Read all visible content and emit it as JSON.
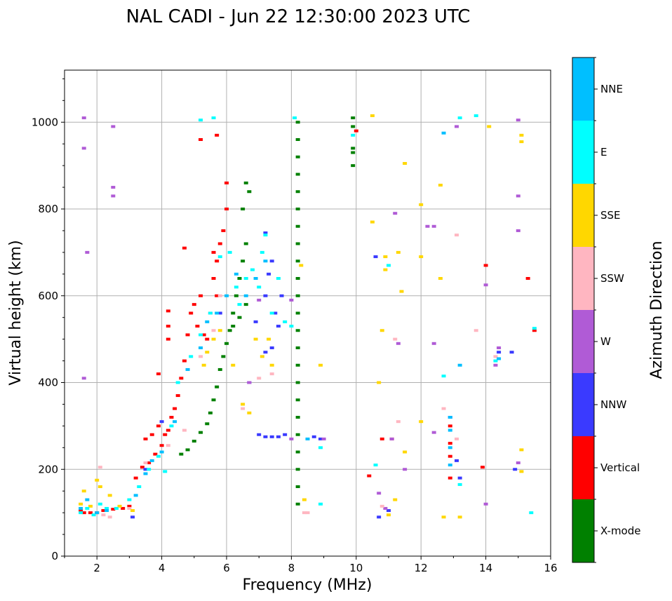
{
  "chart_data": {
    "type": "scatter",
    "title": "NAL CADI - Jun 22 12:30:00 2023 UTC",
    "xlabel": "Frequency (MHz)",
    "ylabel": "Virtual height (km)",
    "xlim": [
      1,
      16
    ],
    "ylim": [
      0,
      1120
    ],
    "xticks": [
      "2",
      "4",
      "6",
      "8",
      "10",
      "12",
      "14",
      "16"
    ],
    "yticks": [
      "0",
      "200",
      "400",
      "600",
      "800",
      "1000"
    ],
    "grid": true,
    "colorbar": {
      "title": "Azimuth Direction",
      "categories": [
        {
          "label": "X-mode",
          "color": "#008000"
        },
        {
          "label": "Vertical",
          "color": "#ff0000"
        },
        {
          "label": "NNW",
          "color": "#3a3aff"
        },
        {
          "label": "W",
          "color": "#b05bd6"
        },
        {
          "label": "SSW",
          "color": "#ffb6c1"
        },
        {
          "label": "SSE",
          "color": "#ffd700"
        },
        {
          "label": "E",
          "color": "#00ffff"
        },
        {
          "label": "NNE",
          "color": "#00bfff"
        }
      ]
    },
    "series": [
      {
        "name": "Vertical",
        "points": [
          [
            1.5,
            105
          ],
          [
            1.6,
            100
          ],
          [
            1.8,
            100
          ],
          [
            2.0,
            100
          ],
          [
            2.2,
            105
          ],
          [
            2.5,
            108
          ],
          [
            2.8,
            110
          ],
          [
            3.0,
            115
          ],
          [
            3.2,
            180
          ],
          [
            3.4,
            205
          ],
          [
            3.6,
            215
          ],
          [
            3.8,
            235
          ],
          [
            4.0,
            255
          ],
          [
            4.2,
            290
          ],
          [
            4.3,
            320
          ],
          [
            4.4,
            340
          ],
          [
            4.5,
            370
          ],
          [
            4.6,
            410
          ],
          [
            4.7,
            450
          ],
          [
            4.8,
            510
          ],
          [
            4.9,
            560
          ],
          [
            5.0,
            580
          ],
          [
            5.1,
            530
          ],
          [
            5.2,
            600
          ],
          [
            5.3,
            510
          ],
          [
            5.4,
            500
          ],
          [
            5.5,
            560
          ],
          [
            5.6,
            640
          ],
          [
            5.7,
            680
          ],
          [
            5.8,
            720
          ],
          [
            5.9,
            750
          ],
          [
            6.0,
            800
          ],
          [
            6.0,
            860
          ],
          [
            5.6,
            700
          ],
          [
            5.7,
            600
          ],
          [
            3.5,
            270
          ],
          [
            3.7,
            280
          ],
          [
            3.9,
            300
          ],
          [
            4.1,
            280
          ],
          [
            4.7,
            710
          ],
          [
            4.2,
            565
          ],
          [
            4.2,
            530
          ],
          [
            4.2,
            500
          ],
          [
            3.9,
            420
          ],
          [
            5.2,
            960
          ],
          [
            5.7,
            970
          ],
          [
            10.0,
            980
          ],
          [
            10.4,
            185
          ],
          [
            10.8,
            270
          ],
          [
            11.1,
            270
          ],
          [
            12.9,
            180
          ],
          [
            12.9,
            300
          ],
          [
            12.9,
            260
          ],
          [
            12.9,
            230
          ],
          [
            13.9,
            205
          ],
          [
            14.0,
            670
          ],
          [
            15.5,
            520
          ],
          [
            15.3,
            640
          ]
        ]
      },
      {
        "name": "X-mode",
        "points": [
          [
            4.6,
            235
          ],
          [
            4.8,
            245
          ],
          [
            5.0,
            265
          ],
          [
            5.2,
            285
          ],
          [
            5.4,
            305
          ],
          [
            5.5,
            330
          ],
          [
            5.6,
            360
          ],
          [
            5.7,
            390
          ],
          [
            5.8,
            430
          ],
          [
            5.9,
            460
          ],
          [
            6.0,
            490
          ],
          [
            6.1,
            520
          ],
          [
            6.2,
            560
          ],
          [
            6.3,
            600
          ],
          [
            6.4,
            640
          ],
          [
            6.5,
            680
          ],
          [
            6.6,
            720
          ],
          [
            6.5,
            800
          ],
          [
            6.6,
            860
          ],
          [
            6.7,
            840
          ],
          [
            6.6,
            580
          ],
          [
            6.4,
            550
          ],
          [
            6.2,
            530
          ],
          [
            8.2,
            1000
          ],
          [
            8.2,
            960
          ],
          [
            8.2,
            920
          ],
          [
            8.2,
            880
          ],
          [
            8.2,
            840
          ],
          [
            8.2,
            800
          ],
          [
            8.2,
            760
          ],
          [
            8.2,
            720
          ],
          [
            8.2,
            680
          ],
          [
            8.2,
            640
          ],
          [
            8.2,
            600
          ],
          [
            8.2,
            560
          ],
          [
            8.2,
            520
          ],
          [
            8.2,
            480
          ],
          [
            8.2,
            440
          ],
          [
            8.2,
            400
          ],
          [
            8.2,
            360
          ],
          [
            8.2,
            320
          ],
          [
            8.2,
            280
          ],
          [
            8.2,
            240
          ],
          [
            8.2,
            200
          ],
          [
            8.2,
            160
          ],
          [
            8.2,
            120
          ],
          [
            9.9,
            1010
          ],
          [
            9.9,
            990
          ],
          [
            9.9,
            940
          ],
          [
            9.9,
            930
          ],
          [
            9.9,
            900
          ]
        ]
      },
      {
        "name": "NNW",
        "points": [
          [
            3.1,
            90
          ],
          [
            3.5,
            200
          ],
          [
            4.0,
            310
          ],
          [
            5.8,
            560
          ],
          [
            6.9,
            540
          ],
          [
            7.2,
            600
          ],
          [
            7.3,
            650
          ],
          [
            7.4,
            680
          ],
          [
            7.5,
            560
          ],
          [
            7.6,
            530
          ],
          [
            7.7,
            600
          ],
          [
            7.4,
            480
          ],
          [
            7.2,
            470
          ],
          [
            7.0,
            280
          ],
          [
            7.2,
            275
          ],
          [
            7.4,
            275
          ],
          [
            7.6,
            275
          ],
          [
            7.8,
            280
          ],
          [
            8.7,
            275
          ],
          [
            8.9,
            270
          ],
          [
            10.6,
            690
          ],
          [
            10.7,
            90
          ],
          [
            11.0,
            105
          ],
          [
            12.9,
            320
          ],
          [
            13.1,
            220
          ],
          [
            13.2,
            180
          ],
          [
            14.9,
            200
          ],
          [
            14.8,
            470
          ],
          [
            14.4,
            470
          ],
          [
            7.2,
            745
          ],
          [
            6.7,
            400
          ]
        ]
      },
      {
        "name": "W",
        "points": [
          [
            1.6,
            1010
          ],
          [
            1.6,
            940
          ],
          [
            1.6,
            410
          ],
          [
            1.7,
            700
          ],
          [
            2.5,
            990
          ],
          [
            2.5,
            850
          ],
          [
            2.5,
            830
          ],
          [
            8.0,
            590
          ],
          [
            6.7,
            400
          ],
          [
            7.0,
            590
          ],
          [
            8.0,
            270
          ],
          [
            9.0,
            270
          ],
          [
            10.7,
            145
          ],
          [
            10.9,
            110
          ],
          [
            11.1,
            270
          ],
          [
            11.2,
            790
          ],
          [
            11.3,
            490
          ],
          [
            11.5,
            200
          ],
          [
            12.2,
            760
          ],
          [
            12.4,
            760
          ],
          [
            12.4,
            490
          ],
          [
            12.4,
            285
          ],
          [
            14.0,
            625
          ],
          [
            14.0,
            120
          ],
          [
            14.3,
            440
          ],
          [
            14.4,
            480
          ],
          [
            15.0,
            1005
          ],
          [
            15.0,
            830
          ],
          [
            15.0,
            750
          ],
          [
            15.0,
            215
          ],
          [
            13.1,
            990
          ]
        ]
      },
      {
        "name": "SSW",
        "points": [
          [
            2.1,
            205
          ],
          [
            2.2,
            95
          ],
          [
            2.4,
            90
          ],
          [
            2.6,
            110
          ],
          [
            3.0,
            110
          ],
          [
            3.5,
            215
          ],
          [
            4.2,
            255
          ],
          [
            4.7,
            290
          ],
          [
            5.2,
            460
          ],
          [
            5.6,
            520
          ],
          [
            5.8,
            600
          ],
          [
            6.5,
            340
          ],
          [
            7.0,
            410
          ],
          [
            7.4,
            420
          ],
          [
            8.4,
            100
          ],
          [
            8.5,
            100
          ],
          [
            10.8,
            115
          ],
          [
            11.2,
            500
          ],
          [
            11.3,
            310
          ],
          [
            12.7,
            340
          ],
          [
            13.1,
            270
          ],
          [
            13.1,
            740
          ],
          [
            13.7,
            520
          ],
          [
            14.3,
            460
          ]
        ]
      },
      {
        "name": "SSE",
        "points": [
          [
            1.5,
            120
          ],
          [
            1.6,
            150
          ],
          [
            1.8,
            115
          ],
          [
            2.0,
            175
          ],
          [
            2.1,
            160
          ],
          [
            2.4,
            140
          ],
          [
            2.7,
            115
          ],
          [
            3.1,
            105
          ],
          [
            5.3,
            440
          ],
          [
            5.4,
            470
          ],
          [
            5.6,
            500
          ],
          [
            5.8,
            520
          ],
          [
            6.2,
            440
          ],
          [
            6.5,
            350
          ],
          [
            6.7,
            330
          ],
          [
            6.9,
            500
          ],
          [
            7.1,
            460
          ],
          [
            7.3,
            500
          ],
          [
            7.4,
            440
          ],
          [
            8.3,
            670
          ],
          [
            8.4,
            130
          ],
          [
            8.9,
            440
          ],
          [
            10.5,
            1015
          ],
          [
            10.5,
            770
          ],
          [
            10.7,
            400
          ],
          [
            10.9,
            660
          ],
          [
            11.0,
            95
          ],
          [
            11.2,
            130
          ],
          [
            11.3,
            700
          ],
          [
            11.4,
            610
          ],
          [
            11.5,
            240
          ],
          [
            11.5,
            905
          ],
          [
            12.0,
            810
          ],
          [
            12.0,
            690
          ],
          [
            12.0,
            310
          ],
          [
            12.6,
            855
          ],
          [
            12.6,
            640
          ],
          [
            12.7,
            90
          ],
          [
            13.2,
            90
          ],
          [
            14.1,
            990
          ],
          [
            15.1,
            970
          ],
          [
            15.1,
            955
          ],
          [
            15.1,
            245
          ],
          [
            15.1,
            195
          ],
          [
            10.9,
            690
          ],
          [
            10.8,
            520
          ]
        ]
      },
      {
        "name": "E",
        "points": [
          [
            1.5,
            100
          ],
          [
            1.7,
            110
          ],
          [
            1.9,
            95
          ],
          [
            2.1,
            120
          ],
          [
            2.3,
            110
          ],
          [
            2.6,
            110
          ],
          [
            3.0,
            130
          ],
          [
            3.3,
            160
          ],
          [
            3.6,
            200
          ],
          [
            3.9,
            230
          ],
          [
            4.1,
            195
          ],
          [
            4.3,
            300
          ],
          [
            4.5,
            400
          ],
          [
            4.9,
            460
          ],
          [
            5.2,
            510
          ],
          [
            5.5,
            560
          ],
          [
            5.8,
            690
          ],
          [
            6.1,
            700
          ],
          [
            6.3,
            620
          ],
          [
            6.4,
            580
          ],
          [
            6.6,
            640
          ],
          [
            6.8,
            660
          ],
          [
            7.0,
            620
          ],
          [
            7.1,
            700
          ],
          [
            7.2,
            740
          ],
          [
            7.4,
            560
          ],
          [
            7.6,
            640
          ],
          [
            7.8,
            540
          ],
          [
            8.0,
            530
          ],
          [
            5.6,
            1010
          ],
          [
            5.2,
            1005
          ],
          [
            8.1,
            1010
          ],
          [
            8.9,
            250
          ],
          [
            8.9,
            120
          ],
          [
            9.9,
            970
          ],
          [
            10.6,
            210
          ],
          [
            11.0,
            670
          ],
          [
            12.7,
            415
          ],
          [
            13.2,
            1010
          ],
          [
            13.7,
            1015
          ],
          [
            13.2,
            165
          ],
          [
            15.4,
            100
          ],
          [
            15.5,
            525
          ],
          [
            14.3,
            450
          ]
        ]
      },
      {
        "name": "NNE",
        "points": [
          [
            1.5,
            110
          ],
          [
            1.7,
            130
          ],
          [
            2.0,
            100
          ],
          [
            2.3,
            105
          ],
          [
            3.2,
            140
          ],
          [
            3.5,
            190
          ],
          [
            3.7,
            220
          ],
          [
            4.0,
            240
          ],
          [
            4.4,
            310
          ],
          [
            4.8,
            430
          ],
          [
            5.2,
            480
          ],
          [
            5.4,
            540
          ],
          [
            5.7,
            560
          ],
          [
            6.0,
            600
          ],
          [
            6.3,
            650
          ],
          [
            6.6,
            600
          ],
          [
            6.9,
            640
          ],
          [
            7.2,
            680
          ],
          [
            8.5,
            270
          ],
          [
            12.7,
            975
          ],
          [
            12.9,
            320
          ],
          [
            12.9,
            290
          ],
          [
            12.9,
            250
          ],
          [
            12.9,
            210
          ],
          [
            13.2,
            440
          ],
          [
            14.4,
            455
          ]
        ]
      }
    ]
  }
}
